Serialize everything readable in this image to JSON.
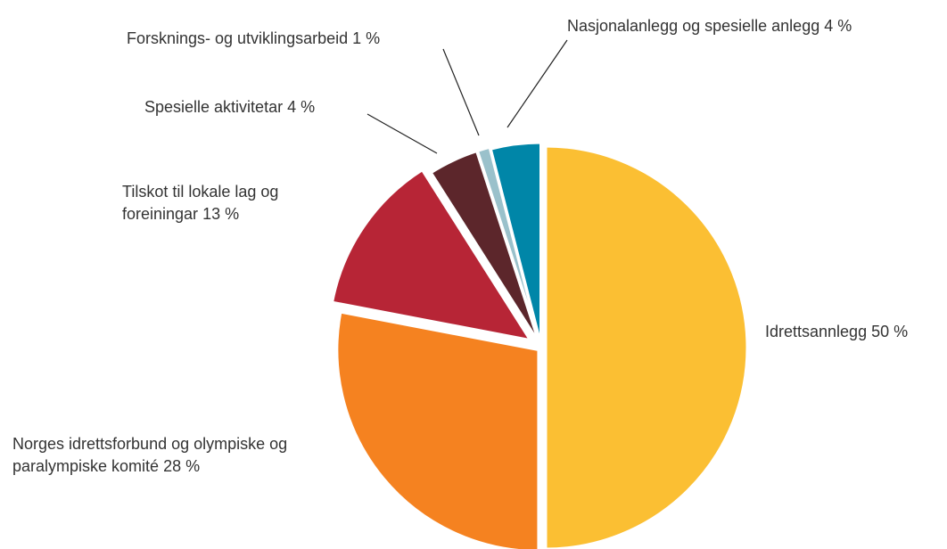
{
  "chart_data": {
    "type": "pie",
    "categories": [
      "Idrettsannlegg",
      "Norges idrettsforbund og olympiske og paralympiske komité",
      "Tilskot til lokale lag og foreiningar",
      "Spesielle aktivitetar",
      "Forsknings- og utviklingsarbeid",
      "Nasjonalanlegg og spesielle anlegg"
    ],
    "values": [
      50,
      28,
      13,
      4,
      1,
      4
    ],
    "value_labels": [
      "50 %",
      "28 %",
      "13 %",
      "4 %",
      "1 %",
      "4 %"
    ],
    "colors": [
      "#fbbf33",
      "#f58220",
      "#b72536",
      "#5c262b",
      "#9ac1cb",
      "#0086a8"
    ]
  }
}
